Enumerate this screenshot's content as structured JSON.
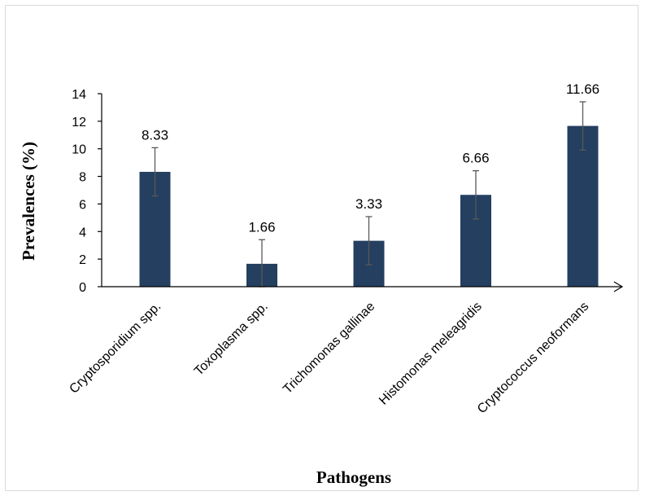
{
  "chart_data": {
    "type": "bar",
    "title": "",
    "xlabel": "Pathogens",
    "ylabel": "Prevalences (%)",
    "categories": [
      "Cryptosporidium spp.",
      "Toxoplasma spp.",
      "Trichomonas gallinae",
      "Histomonas meleagridis",
      "Cryptococcus neoformans"
    ],
    "values": [
      8.33,
      1.66,
      3.33,
      6.66,
      11.66
    ],
    "value_labels": [
      "8.33",
      "1.66",
      "3.33",
      "6.66",
      "11.66"
    ],
    "error": [
      1.75,
      1.75,
      1.75,
      1.75,
      1.75
    ],
    "ylim": [
      0,
      14
    ],
    "yticks": [
      0,
      2,
      4,
      6,
      8,
      10,
      12,
      14
    ],
    "grid": false,
    "bar_color": "#243F60",
    "error_color": "#595959"
  }
}
